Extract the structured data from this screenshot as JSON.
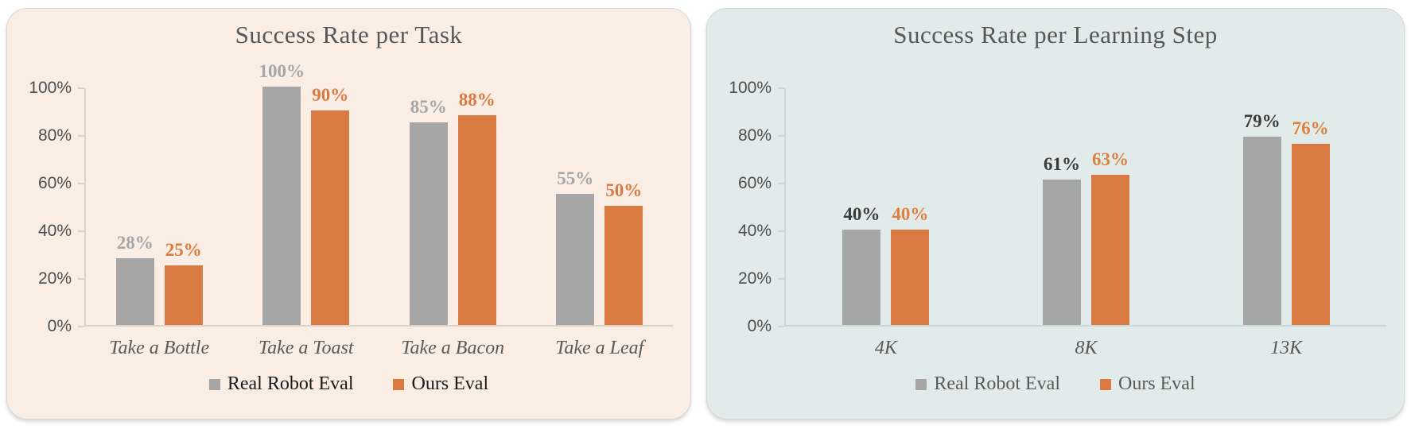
{
  "page": {
    "background": "#ffffff"
  },
  "chart_data": [
    {
      "type": "bar",
      "title": "Success Rate per Task",
      "categories": [
        "Take a Bottle",
        "Take a Toast",
        "Take a Bacon",
        "Take a Leaf"
      ],
      "series": [
        {
          "name": "Real Robot Eval",
          "values": [
            28,
            100,
            85,
            55
          ],
          "labels": [
            "28%",
            "100%",
            "85%",
            "55%"
          ],
          "color": "#A6A6A6",
          "label_color": "#A6A6A6"
        },
        {
          "name": "Ours Eval",
          "values": [
            25,
            90,
            88,
            50
          ],
          "labels": [
            "25%",
            "90%",
            "88%",
            "50%"
          ],
          "color": "#D97A42",
          "label_color": "#D97A42"
        }
      ],
      "xlabel": "",
      "ylabel": "",
      "ylim": [
        0,
        100
      ],
      "y_tick_labels": [
        "100%",
        "80%",
        "60%",
        "40%",
        "20%",
        "0%"
      ],
      "grid": false,
      "legend_position": "bottom",
      "panel_bg": "#FAEDE4",
      "axis_color": "#DDD2CA",
      "title_color": "#575757",
      "tick_label_color": "#4D4D4D",
      "category_label_color": "#595959",
      "legend_text_color": "#1A1A1A"
    },
    {
      "type": "bar",
      "title": "Success Rate per Learning Step",
      "categories": [
        "4K",
        "8K",
        "13K"
      ],
      "series": [
        {
          "name": "Real Robot Eval",
          "values": [
            40,
            61,
            79
          ],
          "labels": [
            "40%",
            "61%",
            "79%"
          ],
          "color": "#A6A6A6",
          "label_color": "#3B3B3B"
        },
        {
          "name": "Ours Eval",
          "values": [
            40,
            63,
            76
          ],
          "labels": [
            "40%",
            "63%",
            "76%"
          ],
          "color": "#D97A42",
          "label_color": "#E0803F"
        }
      ],
      "xlabel": "",
      "ylabel": "",
      "ylim": [
        0,
        100
      ],
      "y_tick_labels": [
        "100%",
        "80%",
        "60%",
        "40%",
        "20%",
        "0%"
      ],
      "grid": false,
      "legend_position": "bottom",
      "panel_bg": "#E1ECEA",
      "axis_color": "#C9D8D5",
      "title_color": "#575757",
      "tick_label_color": "#4D4D4D",
      "category_label_color": "#595959",
      "legend_text_color": "#595959"
    }
  ]
}
